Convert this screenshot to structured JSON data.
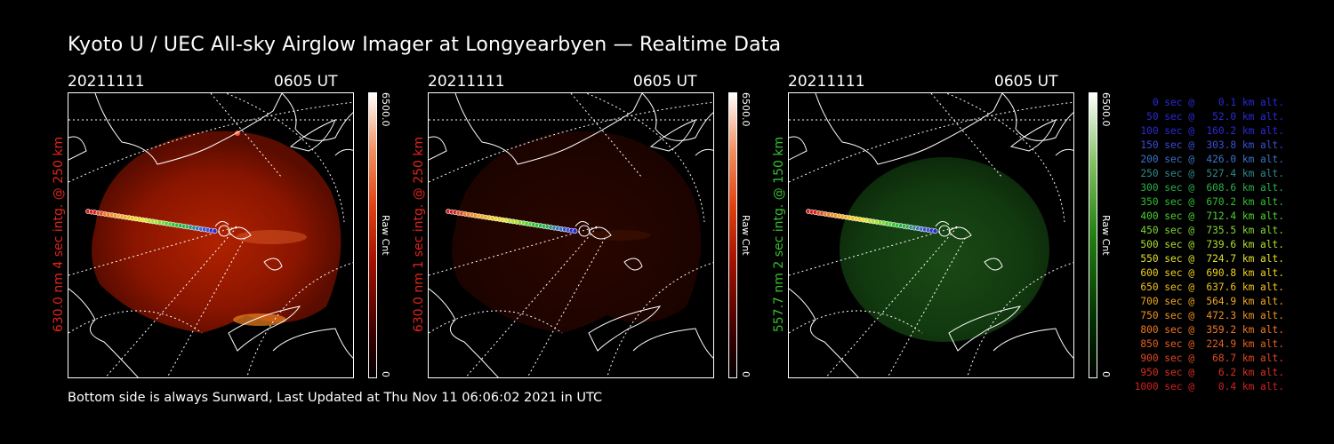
{
  "title": "Kyoto U / UEC All-sky Airglow Imager at Longyearbyen — Realtime Data",
  "footer": "Bottom side is always Sunward, Last Updated at Thu Nov 11 06:06:02 2021 in UTC",
  "panels": [
    {
      "date": "20211111",
      "time": "0605 UT",
      "label": "630.0 nm 4 sec intg. @ 250 km",
      "label_color": "#e0241c",
      "cbar_max": "6500.0",
      "cbar_min": "0",
      "cbar_unit": "Raw Cnt",
      "theme": "red"
    },
    {
      "date": "20211111",
      "time": "0605 UT",
      "label": "630.0 nm 1 sec intg. @ 250 km",
      "label_color": "#e0241c",
      "cbar_max": "6500.0",
      "cbar_min": "0",
      "cbar_unit": "Raw Cnt",
      "theme": "dimred"
    },
    {
      "date": "20211111",
      "time": "0605 UT",
      "label": "557.7 nm 2 sec intg. @ 150 km",
      "label_color": "#38c030",
      "cbar_max": "6500.0",
      "cbar_min": "0",
      "cbar_unit": "Raw Cnt",
      "theme": "green"
    }
  ],
  "legend": [
    {
      "text": "   0 sec @    0.1 km alt.",
      "color": "#2a2ad8"
    },
    {
      "text": "  50 sec @   52.0 km alt.",
      "color": "#2a2ad8"
    },
    {
      "text": " 100 sec @  160.2 km alt.",
      "color": "#2a2ad8"
    },
    {
      "text": " 150 sec @  303.8 km alt.",
      "color": "#3a4ed8"
    },
    {
      "text": " 200 sec @  426.0 km alt.",
      "color": "#3a72c8"
    },
    {
      "text": " 250 sec @  527.4 km alt.",
      "color": "#2f8a8a"
    },
    {
      "text": " 300 sec @  608.6 km alt.",
      "color": "#28b048"
    },
    {
      "text": " 350 sec @  670.2 km alt.",
      "color": "#30c030"
    },
    {
      "text": " 400 sec @  712.4 km alt.",
      "color": "#50d030"
    },
    {
      "text": " 450 sec @  735.5 km alt.",
      "color": "#80d830"
    },
    {
      "text": " 500 sec @  739.6 km alt.",
      "color": "#b0e030"
    },
    {
      "text": " 550 sec @  724.7 km alt.",
      "color": "#e0e030"
    },
    {
      "text": " 600 sec @  690.8 km alt.",
      "color": "#f0d020"
    },
    {
      "text": " 650 sec @  637.6 km alt.",
      "color": "#f0c020"
    },
    {
      "text": " 700 sec @  564.9 km alt.",
      "color": "#f0a820"
    },
    {
      "text": " 750 sec @  472.3 km alt.",
      "color": "#f09020"
    },
    {
      "text": " 800 sec @  359.2 km alt.",
      "color": "#f07820"
    },
    {
      "text": " 850 sec @  224.9 km alt.",
      "color": "#e86020"
    },
    {
      "text": " 900 sec @   68.7 km alt.",
      "color": "#e04820"
    },
    {
      "text": " 950 sec @    6.2 km alt.",
      "color": "#d83020"
    },
    {
      "text": "1000 sec @    0.4 km alt.",
      "color": "#d02020"
    }
  ]
}
